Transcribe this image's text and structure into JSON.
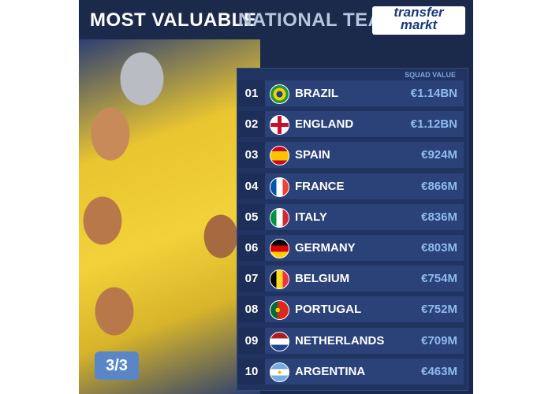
{
  "header": {
    "title_main": "MOST VALUABLE",
    "title_accent": "NATIONAL TEAMS",
    "logo_top": "transfer",
    "logo_bottom": "markt"
  },
  "table": {
    "column_header": "SQUAD VALUE",
    "rows": [
      [
        "01",
        "BRAZIL",
        "€1.14BN"
      ],
      [
        "02",
        "ENGLAND",
        "€1.12BN"
      ],
      [
        "03",
        "SPAIN",
        "€924M"
      ],
      [
        "04",
        "FRANCE",
        "€866M"
      ],
      [
        "05",
        "ITALY",
        "€836M"
      ],
      [
        "06",
        "GERMANY",
        "€803M"
      ],
      [
        "07",
        "BELGIUM",
        "€754M"
      ],
      [
        "08",
        "PORTUGAL",
        "€752M"
      ],
      [
        "09",
        "NETHERLANDS",
        "€709M"
      ],
      [
        "10",
        "ARGENTINA",
        "€463M"
      ]
    ]
  },
  "page_indicator": "3/3"
}
